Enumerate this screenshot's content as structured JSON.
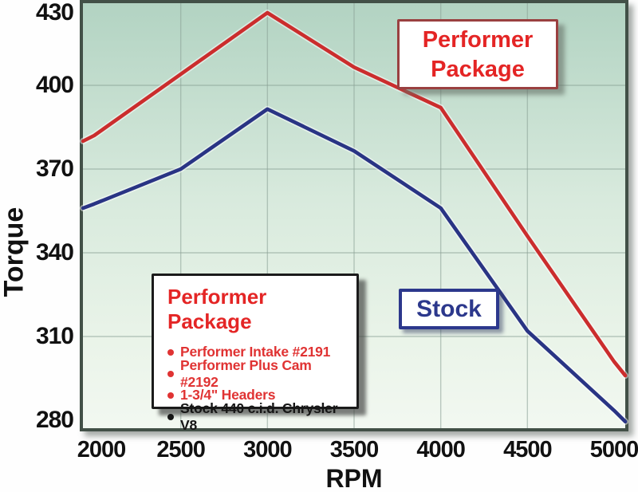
{
  "chart_data": {
    "type": "line",
    "title": "",
    "xlabel": "RPM",
    "ylabel": "Torque",
    "x_ticks": [
      2000,
      2500,
      3000,
      3500,
      4000,
      4500,
      5000
    ],
    "y_ticks": [
      280,
      310,
      340,
      370,
      400,
      430
    ],
    "x_gridlines": [
      2500,
      3000,
      3500,
      4000,
      4500
    ],
    "y_gridlines": [
      310,
      340,
      370,
      400
    ],
    "xlim": [
      1936,
      5065
    ],
    "ylim": [
      278,
      431
    ],
    "grid": true,
    "legend_position": "lower-left",
    "series": [
      {
        "name": "Performer Package",
        "color": "#cb2d2d",
        "points": [
          [
            1936,
            380
          ],
          [
            2000,
            382
          ],
          [
            2500,
            404
          ],
          [
            3000,
            426
          ],
          [
            3500,
            406.5
          ],
          [
            4000,
            392
          ],
          [
            4500,
            346
          ],
          [
            5000,
            301
          ],
          [
            5065,
            296
          ]
        ]
      },
      {
        "name": "Stock",
        "color": "#293484",
        "points": [
          [
            1936,
            356
          ],
          [
            2000,
            357.5
          ],
          [
            2500,
            370
          ],
          [
            3000,
            391.5
          ],
          [
            3500,
            376.5
          ],
          [
            4000,
            356
          ],
          [
            4500,
            312
          ],
          [
            5000,
            283.5
          ],
          [
            5065,
            279.5
          ]
        ]
      }
    ],
    "annotations": {
      "performer_label": {
        "line1": "Performer",
        "line2": "Package"
      },
      "stock_label": "Stock"
    },
    "legend": {
      "title": "Performer Package",
      "items": [
        {
          "text": "Performer Intake #2191",
          "color": "#e03333"
        },
        {
          "text": "Performer Plus Cam #2192",
          "color": "#e03333"
        },
        {
          "text": "1-3/4\" Headers",
          "color": "#e03333"
        },
        {
          "text": "Stock 440 c.i.d. Chrysler V8",
          "color": "#161616"
        }
      ]
    }
  },
  "colors": {
    "performer_line": "#cb2d2d",
    "stock_line": "#293484",
    "text_red": "#e42525",
    "text_navy": "#2c388c",
    "plot_bg_top": "#b2d3c2",
    "plot_bg_mid": "#d8eadd",
    "plot_bg_bottom": "#f2f8f1",
    "frame": "#425047",
    "grid": "#8aa195"
  }
}
